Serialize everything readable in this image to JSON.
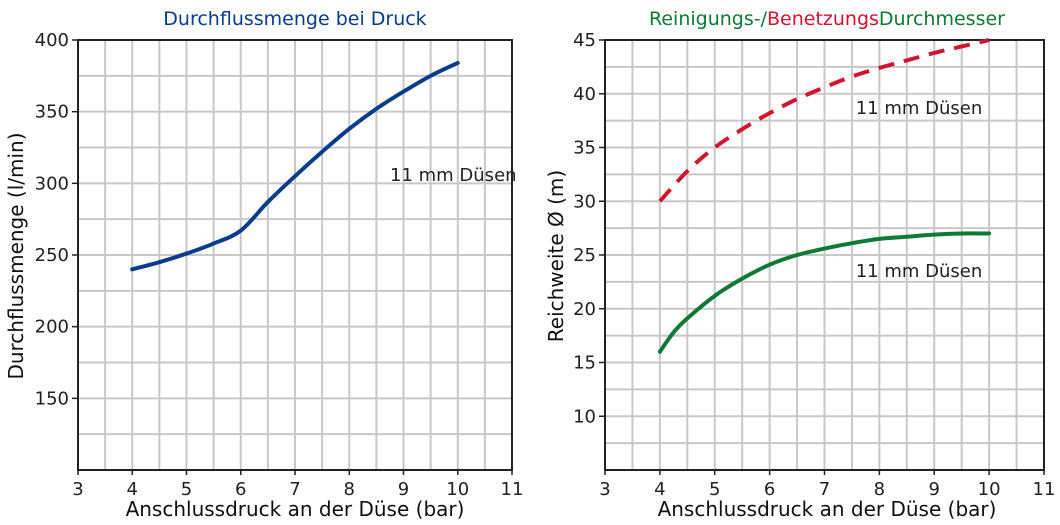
{
  "chart_data": [
    {
      "type": "line",
      "title": "Durchflussmenge bei Druck",
      "title_color": "#0a3c8c",
      "xlabel": "Anschlussdruck an der Düse (bar)",
      "ylabel": "Durchflussmenge (l/min)",
      "xlim": [
        3,
        11
      ],
      "ylim": [
        100,
        400
      ],
      "x_ticks": [
        "3",
        "4",
        "5",
        "6",
        "7",
        "8",
        "9",
        "10",
        "11"
      ],
      "y_ticks": [
        "150",
        "200",
        "250",
        "300",
        "350",
        "400"
      ],
      "grid": true,
      "annotation": "11 mm Düsen",
      "series": [
        {
          "color": "#0a3c8c",
          "style": "solid",
          "x": [
            4,
            4.5,
            5,
            5.5,
            6,
            6.5,
            7,
            7.5,
            8,
            8.5,
            9,
            9.5,
            10
          ],
          "y": [
            240,
            245,
            251,
            258,
            267,
            287,
            305,
            322,
            338,
            352,
            364,
            375,
            384
          ]
        }
      ]
    },
    {
      "type": "line",
      "title_parts": [
        {
          "text": "Reinigungs-/",
          "color": "#0e7a34"
        },
        {
          "text": "Benetzungs",
          "color": "#d2142d"
        },
        {
          "text": "Durchmesser",
          "color": "#0e7a34"
        }
      ],
      "xlabel": "Anschlussdruck an der Düse (bar)",
      "ylabel": "Reichweite Ø (m)",
      "xlim": [
        3,
        11
      ],
      "ylim": [
        5,
        45
      ],
      "x_ticks": [
        "3",
        "4",
        "5",
        "6",
        "7",
        "8",
        "9",
        "10",
        "11"
      ],
      "y_ticks": [
        "10",
        "15",
        "20",
        "25",
        "30",
        "35",
        "40",
        "45"
      ],
      "grid": true,
      "annotations": [
        "11 mm Düsen",
        "11 mm Düsen"
      ],
      "series": [
        {
          "color": "#d2142d",
          "style": "dashed",
          "x": [
            4,
            4.5,
            5,
            5.5,
            6,
            6.5,
            7,
            7.5,
            8,
            8.5,
            9,
            9.5,
            10
          ],
          "y": [
            30,
            32.8,
            35,
            36.7,
            38.2,
            39.5,
            40.6,
            41.6,
            42.4,
            43.1,
            43.8,
            44.4,
            45
          ]
        },
        {
          "color": "#0e7a34",
          "style": "solid",
          "x": [
            4,
            4.25,
            4.5,
            5,
            5.5,
            6,
            6.5,
            7,
            7.5,
            8,
            8.5,
            9,
            9.5,
            10
          ],
          "y": [
            16,
            17.8,
            19.1,
            21.2,
            22.8,
            24.1,
            25,
            25.6,
            26.1,
            26.5,
            26.7,
            26.9,
            27,
            27
          ]
        }
      ]
    }
  ]
}
